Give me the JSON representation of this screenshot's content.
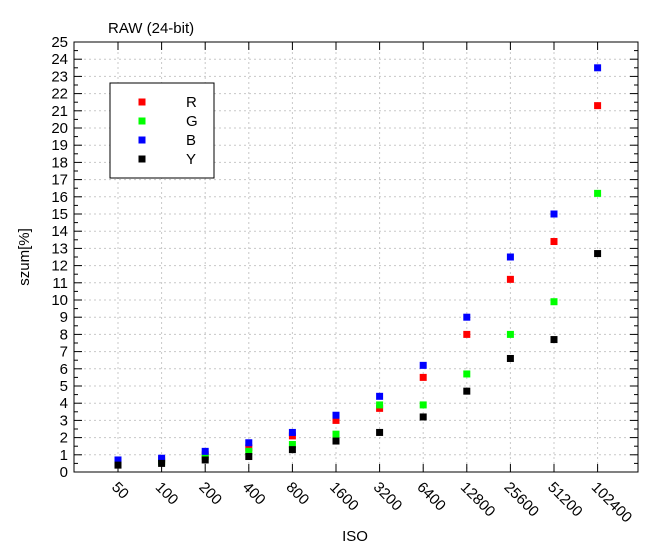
{
  "chart_data": {
    "type": "scatter",
    "title": "RAW (24-bit)",
    "xlabel": "ISO",
    "ylabel": "szum[%]",
    "categories": [
      "50",
      "100",
      "200",
      "400",
      "800",
      "1600",
      "3200",
      "6400",
      "12800",
      "25600",
      "51200",
      "102400"
    ],
    "ylim": [
      0,
      25
    ],
    "yticks": [
      0,
      1,
      2,
      3,
      4,
      5,
      6,
      7,
      8,
      9,
      10,
      11,
      12,
      13,
      14,
      15,
      16,
      17,
      18,
      19,
      20,
      21,
      22,
      23,
      24,
      25
    ],
    "grid": true,
    "legend_position": "top-left",
    "series": [
      {
        "name": "R",
        "color": "#ff0000",
        "values": [
          0.6,
          0.7,
          1.0,
          1.4,
          2.1,
          3.0,
          3.7,
          5.5,
          8.0,
          11.2,
          13.4,
          21.3
        ]
      },
      {
        "name": "G",
        "color": "#00ff00",
        "values": [
          0.5,
          0.6,
          0.9,
          1.2,
          1.6,
          2.2,
          3.9,
          3.9,
          5.7,
          8.0,
          9.9,
          16.2
        ]
      },
      {
        "name": "B",
        "color": "#0000ff",
        "values": [
          0.7,
          0.8,
          1.2,
          1.7,
          2.3,
          3.3,
          4.4,
          6.2,
          9.0,
          12.5,
          15.0,
          23.5
        ]
      },
      {
        "name": "Y",
        "color": "#000000",
        "values": [
          0.4,
          0.5,
          0.7,
          0.9,
          1.3,
          1.8,
          2.3,
          3.2,
          4.7,
          6.6,
          7.7,
          12.7
        ]
      }
    ]
  }
}
